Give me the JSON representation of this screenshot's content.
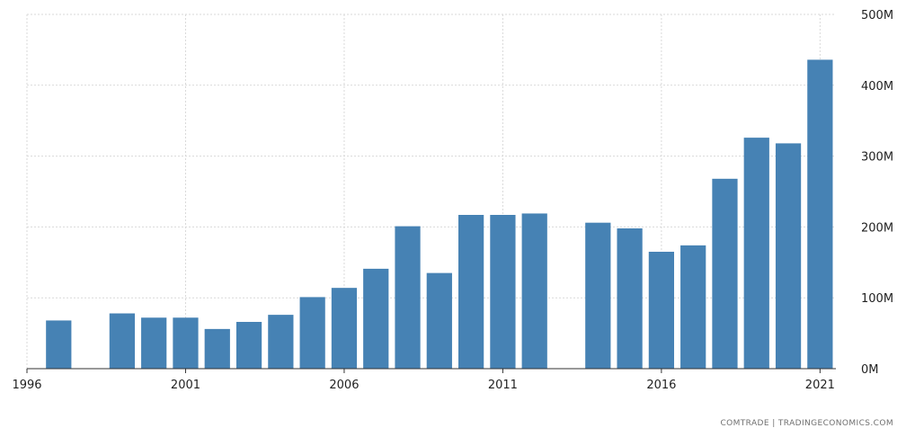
{
  "chart_data": {
    "type": "bar",
    "x": [
      1997,
      1999,
      2000,
      2001,
      2002,
      2003,
      2004,
      2005,
      2006,
      2007,
      2008,
      2009,
      2010,
      2011,
      2012,
      2014,
      2015,
      2016,
      2017,
      2018,
      2019,
      2020,
      2021
    ],
    "values": [
      68,
      78,
      72,
      72,
      56,
      66,
      76,
      101,
      114,
      141,
      201,
      135,
      217,
      217,
      219,
      206,
      198,
      165,
      174,
      268,
      326,
      318,
      436
    ],
    "x_ticks": [
      1996,
      2001,
      2006,
      2011,
      2016,
      2021
    ],
    "x_tick_labels": [
      "1996",
      "2001",
      "2006",
      "2011",
      "2016",
      "2021"
    ],
    "xlim": [
      1996,
      2021.5
    ],
    "y_ticks": [
      0,
      100,
      200,
      300,
      400,
      500
    ],
    "y_tick_labels": [
      "0M",
      "100M",
      "200M",
      "300M",
      "400M",
      "500M"
    ],
    "ylim": [
      0,
      500
    ],
    "y_axis_side": "right",
    "grid": true,
    "colors": {
      "bar": "#4682b4",
      "grid": "#d9d9d9",
      "axis": "#333333"
    }
  },
  "source_label": "COMTRADE | TRADINGECONOMICS.COM"
}
